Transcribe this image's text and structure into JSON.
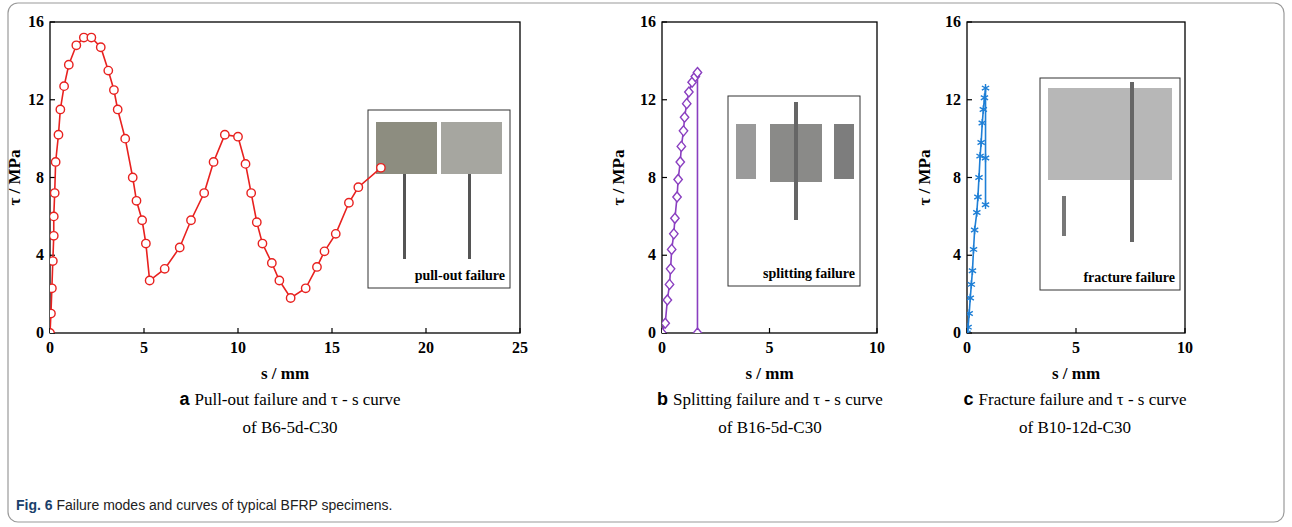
{
  "chart_data": [
    {
      "type": "line",
      "panel_label": "a",
      "title": "Pull-out failure and τ - s curve of B6-5d-C30",
      "x_label": "s / mm",
      "y_label": "τ / MPa",
      "annotation": "pull-out failure",
      "color": "#e8211f",
      "marker": "circle",
      "line_style": "solid",
      "xlim": [
        0,
        25
      ],
      "xticks": [
        0,
        5,
        10,
        15,
        20,
        25
      ],
      "ylim": [
        0,
        16
      ],
      "yticks": [
        0,
        4,
        8,
        12,
        16
      ],
      "x": [
        0,
        0.05,
        0.1,
        0.15,
        0.2,
        0.2,
        0.25,
        0.3,
        0.45,
        0.55,
        0.75,
        1.0,
        1.4,
        1.8,
        2.2,
        2.7,
        3.1,
        3.4,
        3.6,
        4.0,
        4.4,
        4.6,
        4.9,
        5.1,
        5.3,
        6.1,
        6.9,
        7.5,
        8.2,
        8.7,
        9.3,
        10.0,
        10.4,
        10.7,
        11.0,
        11.3,
        11.8,
        12.2,
        12.8,
        13.6,
        14.2,
        14.6,
        15.2,
        15.9,
        16.4,
        17.6
      ],
      "values": [
        0,
        1.0,
        2.3,
        3.7,
        5.0,
        6.0,
        7.2,
        8.8,
        10.2,
        11.5,
        12.7,
        13.8,
        14.8,
        15.2,
        15.2,
        14.7,
        13.5,
        12.5,
        11.5,
        10.0,
        8.0,
        6.8,
        5.8,
        4.6,
        2.7,
        3.3,
        4.4,
        5.8,
        7.2,
        8.8,
        10.2,
        10.1,
        8.7,
        7.2,
        5.7,
        4.6,
        3.6,
        2.7,
        1.8,
        2.3,
        3.4,
        4.2,
        5.1,
        6.7,
        7.5,
        8.5
      ]
    },
    {
      "type": "line",
      "panel_label": "b",
      "title": "Splitting failure and τ - s curve of B16-5d-C30",
      "x_label": "s / mm",
      "y_label": "τ / MPa",
      "annotation": "splitting failure",
      "color": "#8a3fc0",
      "marker": "diamond",
      "line_style": "solid",
      "xlim": [
        0,
        10
      ],
      "xticks": [
        0,
        5,
        10
      ],
      "ylim": [
        0,
        16
      ],
      "yticks": [
        0,
        4,
        8,
        12,
        16
      ],
      "x": [
        0,
        0.15,
        0.25,
        0.35,
        0.4,
        0.45,
        0.55,
        0.6,
        0.7,
        0.75,
        0.85,
        0.9,
        1.0,
        1.05,
        1.15,
        1.25,
        1.4,
        1.55,
        1.65,
        1.65
      ],
      "values": [
        0,
        0.5,
        1.7,
        2.5,
        3.3,
        4.3,
        5.1,
        5.9,
        7.0,
        7.9,
        8.8,
        9.6,
        10.4,
        11.1,
        11.8,
        12.4,
        12.9,
        13.2,
        13.4,
        0
      ]
    },
    {
      "type": "line",
      "panel_label": "c",
      "title": "Fracture failure and τ - s curve of B10-12d-C30",
      "x_label": "s / mm",
      "y_label": "τ / MPa",
      "annotation": "fracture failure",
      "color": "#1e7fd6",
      "marker": "star",
      "line_style": "solid",
      "xlim": [
        0,
        10
      ],
      "xticks": [
        0,
        5,
        10
      ],
      "ylim": [
        0,
        16
      ],
      "yticks": [
        0,
        4,
        8,
        12,
        16
      ],
      "x": [
        0,
        0.05,
        0.1,
        0.15,
        0.2,
        0.25,
        0.3,
        0.35,
        0.45,
        0.5,
        0.55,
        0.6,
        0.65,
        0.7,
        0.75,
        0.8,
        0.85,
        0.85,
        0.85
      ],
      "values": [
        0,
        0.3,
        1.0,
        1.8,
        2.5,
        3.2,
        4.3,
        5.3,
        6.2,
        7.0,
        8.0,
        9.1,
        9.8,
        10.8,
        11.5,
        12.1,
        12.6,
        9.0,
        6.6
      ]
    }
  ],
  "caption": {
    "label": "Fig. 6",
    "text": "Failure modes and curves of typical BFRP specimens."
  }
}
